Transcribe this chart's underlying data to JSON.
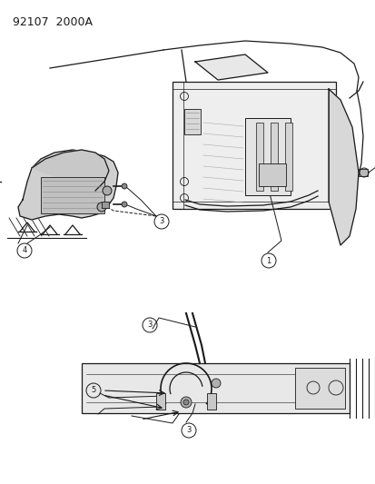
{
  "title_text": "92107  2000A",
  "bg": "#ffffff",
  "lc": "#1a1a1a",
  "gray1": "#c8c8c8",
  "gray2": "#e0e0e0",
  "gray3": "#b0b0b0",
  "fig_width": 4.14,
  "fig_height": 5.33,
  "dpi": 100
}
